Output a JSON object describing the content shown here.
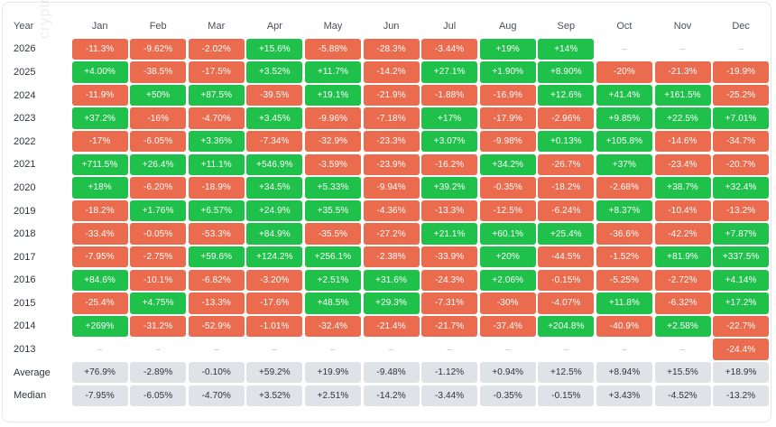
{
  "chart_data": {
    "type": "table",
    "header_year_label": "Year",
    "months": [
      "Jan",
      "Feb",
      "Mar",
      "Apr",
      "May",
      "Jun",
      "Jul",
      "Aug",
      "Sep",
      "Oct",
      "Nov",
      "Dec"
    ],
    "empty_symbol": "–",
    "colors": {
      "positive": "#1fc14a",
      "negative": "#ea6b4d",
      "summary": "#dfe2e7"
    },
    "rows": [
      {
        "year": "2026",
        "values": [
          "-11.3%",
          "-9.62%",
          "-2.02%",
          "+15.6%",
          "-5.88%",
          "-28.3%",
          "-3.44%",
          "+19%",
          "+14%",
          null,
          null,
          null
        ]
      },
      {
        "year": "2025",
        "values": [
          "+4.00%",
          "-38.5%",
          "-17.5%",
          "+3.52%",
          "+11.7%",
          "-14.2%",
          "+27.1%",
          "+1.90%",
          "+8.90%",
          "-20%",
          "-21.3%",
          "-19.9%"
        ]
      },
      {
        "year": "2024",
        "values": [
          "-11.9%",
          "+50%",
          "+87.5%",
          "-39.5%",
          "+19.1%",
          "-21.9%",
          "-1.88%",
          "-16.9%",
          "+12.6%",
          "+41.4%",
          "+161.5%",
          "-25.2%"
        ]
      },
      {
        "year": "2023",
        "values": [
          "+37.2%",
          "-16%",
          "-4.70%",
          "+3.45%",
          "-9.96%",
          "-7.18%",
          "+17%",
          "-17.9%",
          "-2.96%",
          "+9.85%",
          "+22.5%",
          "+7.01%"
        ]
      },
      {
        "year": "2022",
        "values": [
          "-17%",
          "-6.05%",
          "+3.36%",
          "-7.34%",
          "-32.9%",
          "-23.3%",
          "+3.07%",
          "-9.98%",
          "+0.13%",
          "+105.8%",
          "-14.6%",
          "-34.7%"
        ]
      },
      {
        "year": "2021",
        "values": [
          "+711.5%",
          "+26.4%",
          "+11.1%",
          "+546.9%",
          "-3.59%",
          "-23.9%",
          "-16.2%",
          "+34.2%",
          "-26.7%",
          "+37%",
          "-23.4%",
          "-20.7%"
        ]
      },
      {
        "year": "2020",
        "values": [
          "+18%",
          "-6.20%",
          "-18.9%",
          "+34.5%",
          "+5.33%",
          "-9.94%",
          "+39.2%",
          "-0.35%",
          "-18.2%",
          "-2.68%",
          "+38.7%",
          "+32.4%"
        ]
      },
      {
        "year": "2019",
        "values": [
          "-18.2%",
          "+1.76%",
          "+6.57%",
          "+24.9%",
          "+35.5%",
          "-4.36%",
          "-13.3%",
          "-12.5%",
          "-6.24%",
          "+8.37%",
          "-10.4%",
          "-13.2%"
        ]
      },
      {
        "year": "2018",
        "values": [
          "-33.4%",
          "-0.05%",
          "-53.3%",
          "+84.9%",
          "-35.5%",
          "-27.2%",
          "+21.1%",
          "+60.1%",
          "+25.4%",
          "-36.6%",
          "-42.2%",
          "+7.87%"
        ]
      },
      {
        "year": "2017",
        "values": [
          "-7.95%",
          "-2.75%",
          "+59.6%",
          "+124.2%",
          "+256.1%",
          "-2.38%",
          "-33.9%",
          "+20%",
          "-44.5%",
          "-1.52%",
          "+81.9%",
          "+337.5%"
        ]
      },
      {
        "year": "2016",
        "values": [
          "+84.6%",
          "-10.1%",
          "-6.82%",
          "-3.20%",
          "+2.51%",
          "+31.6%",
          "-24.3%",
          "+2.06%",
          "-0.15%",
          "-5.25%",
          "-2.72%",
          "+4.14%"
        ]
      },
      {
        "year": "2015",
        "values": [
          "-25.4%",
          "+4.75%",
          "-13.3%",
          "-17.6%",
          "+48.5%",
          "+29.3%",
          "-7.31%",
          "-30%",
          "-4.07%",
          "+11.8%",
          "-6.32%",
          "+17.2%"
        ]
      },
      {
        "year": "2014",
        "values": [
          "+269%",
          "-31.2%",
          "-52.9%",
          "-1.01%",
          "-32.4%",
          "-21.4%",
          "-21.7%",
          "-37.4%",
          "+204.8%",
          "-40.9%",
          "+2.58%",
          "-22.7%"
        ]
      },
      {
        "year": "2013",
        "values": [
          null,
          null,
          null,
          null,
          null,
          null,
          null,
          null,
          null,
          null,
          null,
          "-24.4%"
        ]
      }
    ],
    "summary": [
      {
        "label": "Average",
        "values": [
          "+76.9%",
          "-2.89%",
          "-0.10%",
          "+59.2%",
          "+19.9%",
          "-9.48%",
          "-1.12%",
          "+0.94%",
          "+12.5%",
          "+8.94%",
          "+15.5%",
          "+18.9%"
        ]
      },
      {
        "label": "Median",
        "values": [
          "-7.95%",
          "-6.05%",
          "-4.70%",
          "+3.52%",
          "+2.51%",
          "-14.2%",
          "-3.44%",
          "-0.35%",
          "-0.15%",
          "+3.43%",
          "-4.52%",
          "-13.2%"
        ]
      }
    ]
  },
  "watermark": "cryptorank"
}
